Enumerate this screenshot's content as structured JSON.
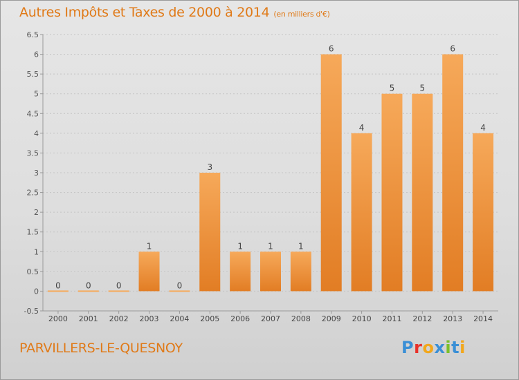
{
  "title": "Autres Impôts et Taxes de 2000 à 2014",
  "unit": "(en milliers d'€)",
  "place": "PARVILLERS-LE-QUESNOY",
  "logo": {
    "text": "Proxiti",
    "colors": [
      "#3a8fd6",
      "#e8322b",
      "#f2a71b",
      "#3a8fd6",
      "#7bbf2a",
      "#3a8fd6",
      "#f2a71b"
    ]
  },
  "colors": {
    "accent": "#e07a18",
    "bar_light": "#f6a95a",
    "bar_dark": "#e27d24",
    "grid": "#c4c4c4"
  },
  "chart_data": {
    "type": "bar",
    "title": "Autres Impôts et Taxes de 2000 à 2014",
    "xlabel": "",
    "ylabel": "",
    "categories": [
      "2000",
      "2001",
      "2002",
      "2003",
      "2004",
      "2005",
      "2006",
      "2007",
      "2008",
      "2009",
      "2010",
      "2011",
      "2012",
      "2013",
      "2014"
    ],
    "values": [
      0,
      0,
      0,
      1,
      0,
      3,
      1,
      1,
      1,
      6,
      4,
      5,
      5,
      6,
      4
    ],
    "data_labels": [
      "0",
      "0",
      "0",
      "1",
      "0",
      "3",
      "1",
      "1",
      "1",
      "6",
      "4",
      "5",
      "5",
      "6",
      "4"
    ],
    "yticks": [
      "6.5",
      "6",
      "5.5",
      "5",
      "4.5",
      "4",
      "3.5",
      "3",
      "2.5",
      "2",
      "1.5",
      "1",
      "0.5",
      "0",
      "-0.5"
    ],
    "ylim": [
      -0.5,
      6.5
    ],
    "grid": "dashed horizontal",
    "legend": "none"
  }
}
